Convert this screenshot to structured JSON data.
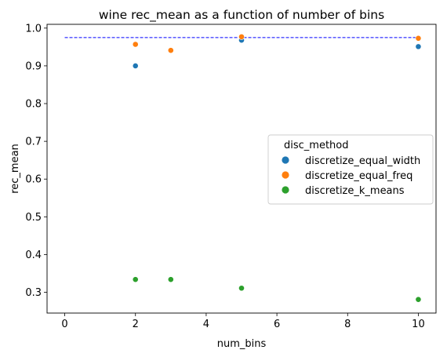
{
  "chart_data": {
    "type": "scatter",
    "title": "wine rec_mean as a function of number of bins",
    "xlabel": "num_bins",
    "ylabel": "rec_mean",
    "xlim": [
      -0.5,
      10.5
    ],
    "ylim": [
      0.245,
      1.01
    ],
    "xticks": [
      0,
      2,
      4,
      6,
      8,
      10
    ],
    "yticks": [
      0.3,
      0.4,
      0.5,
      0.6,
      0.7,
      0.8,
      0.9,
      1.0
    ],
    "xtick_labels": [
      "0",
      "2",
      "4",
      "6",
      "8",
      "10"
    ],
    "ytick_labels": [
      "0.3",
      "0.4",
      "0.5",
      "0.6",
      "0.7",
      "0.8",
      "0.9",
      "1.0"
    ],
    "grid": false,
    "legend": {
      "title": "disc_method",
      "position": "center-right"
    },
    "reference_line": {
      "y": 0.975,
      "x_range": [
        0,
        10
      ],
      "style": "dashed",
      "color": "#0000ff"
    },
    "series": [
      {
        "name": "discretize_equal_width",
        "color": "#1f77b4",
        "points": [
          {
            "x": 2,
            "y": 0.9
          },
          {
            "x": 5,
            "y": 0.968
          },
          {
            "x": 10,
            "y": 0.951
          }
        ]
      },
      {
        "name": "discretize_equal_freq",
        "color": "#ff7f0e",
        "points": [
          {
            "x": 2,
            "y": 0.957
          },
          {
            "x": 3,
            "y": 0.941
          },
          {
            "x": 5,
            "y": 0.977
          },
          {
            "x": 10,
            "y": 0.973
          }
        ]
      },
      {
        "name": "discretize_k_means",
        "color": "#2ca02c",
        "points": [
          {
            "x": 2,
            "y": 0.334
          },
          {
            "x": 3,
            "y": 0.334
          },
          {
            "x": 5,
            "y": 0.311
          },
          {
            "x": 10,
            "y": 0.281
          }
        ]
      }
    ]
  }
}
